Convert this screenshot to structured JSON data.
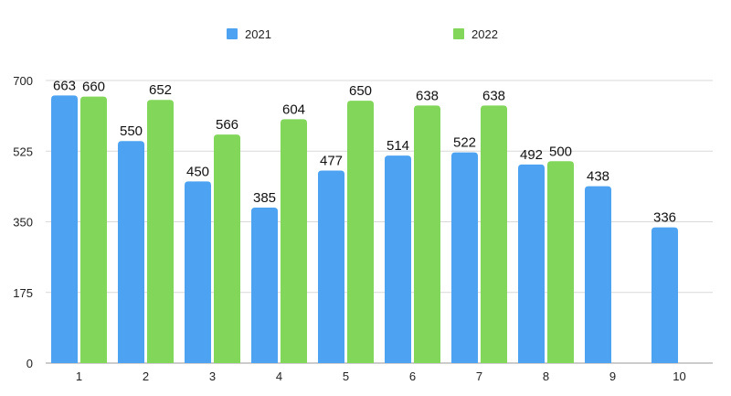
{
  "chart_data": {
    "type": "bar",
    "categories": [
      "1",
      "2",
      "3",
      "4",
      "5",
      "6",
      "7",
      "8",
      "9",
      "10"
    ],
    "series": [
      {
        "name": "2021",
        "color": "#4da3f2",
        "values": [
          663,
          550,
          450,
          385,
          477,
          514,
          522,
          492,
          438,
          336
        ]
      },
      {
        "name": "2022",
        "color": "#82d65a",
        "values": [
          660,
          652,
          566,
          604,
          650,
          638,
          638,
          500,
          null,
          null
        ]
      }
    ],
    "yticks": [
      "0",
      "175",
      "350",
      "525",
      "700"
    ],
    "ylim": [
      0,
      700
    ],
    "grid": true,
    "legend": "top-center",
    "title": "",
    "xlabel": "",
    "ylabel": ""
  }
}
